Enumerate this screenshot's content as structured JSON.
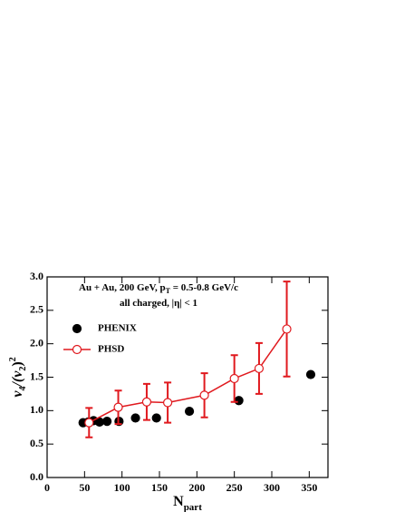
{
  "chart_data": {
    "type": "scatter",
    "annotations": [
      [
        "Au + Au, 200 GeV, p",
        "T",
        " = 0.5-0.8 GeV/c"
      ],
      [
        "all charged, |η| < 1"
      ]
    ],
    "xlabel": [
      "N",
      "part"
    ],
    "ylabel": [
      "v",
      "4",
      "/(v",
      "2",
      ")",
      "2"
    ],
    "xlim": [
      0,
      375
    ],
    "xticks": [
      0,
      50,
      100,
      150,
      200,
      250,
      300,
      350
    ],
    "ylim": [
      0,
      3.0
    ],
    "yticks": [
      {
        "value": 0,
        "label": "0.0"
      },
      0.5,
      {
        "value": 1,
        "label": "1.0"
      },
      1.5,
      {
        "value": 2,
        "label": "2.0"
      },
      2.5,
      {
        "value": 3,
        "label": "3.0"
      }
    ],
    "series": [
      {
        "name": "PHENIX",
        "color": "#000000",
        "marker": "filled",
        "x": [
          48,
          55,
          62,
          70,
          80,
          96,
          118,
          146,
          190,
          256,
          352
        ],
        "values": [
          0.82,
          0.83,
          0.85,
          0.83,
          0.84,
          0.84,
          0.89,
          0.89,
          0.99,
          1.15,
          1.54
        ]
      },
      {
        "name": "PHSD",
        "color": "#e0191e",
        "marker": "open",
        "line": true,
        "x": [
          56,
          95,
          133,
          161,
          210,
          250,
          283,
          320
        ],
        "values": [
          0.82,
          1.05,
          1.13,
          1.12,
          1.23,
          1.48,
          1.63,
          2.22
        ],
        "errors": [
          0.22,
          0.25,
          0.27,
          0.3,
          0.33,
          0.35,
          0.38,
          0.71
        ]
      }
    ]
  }
}
